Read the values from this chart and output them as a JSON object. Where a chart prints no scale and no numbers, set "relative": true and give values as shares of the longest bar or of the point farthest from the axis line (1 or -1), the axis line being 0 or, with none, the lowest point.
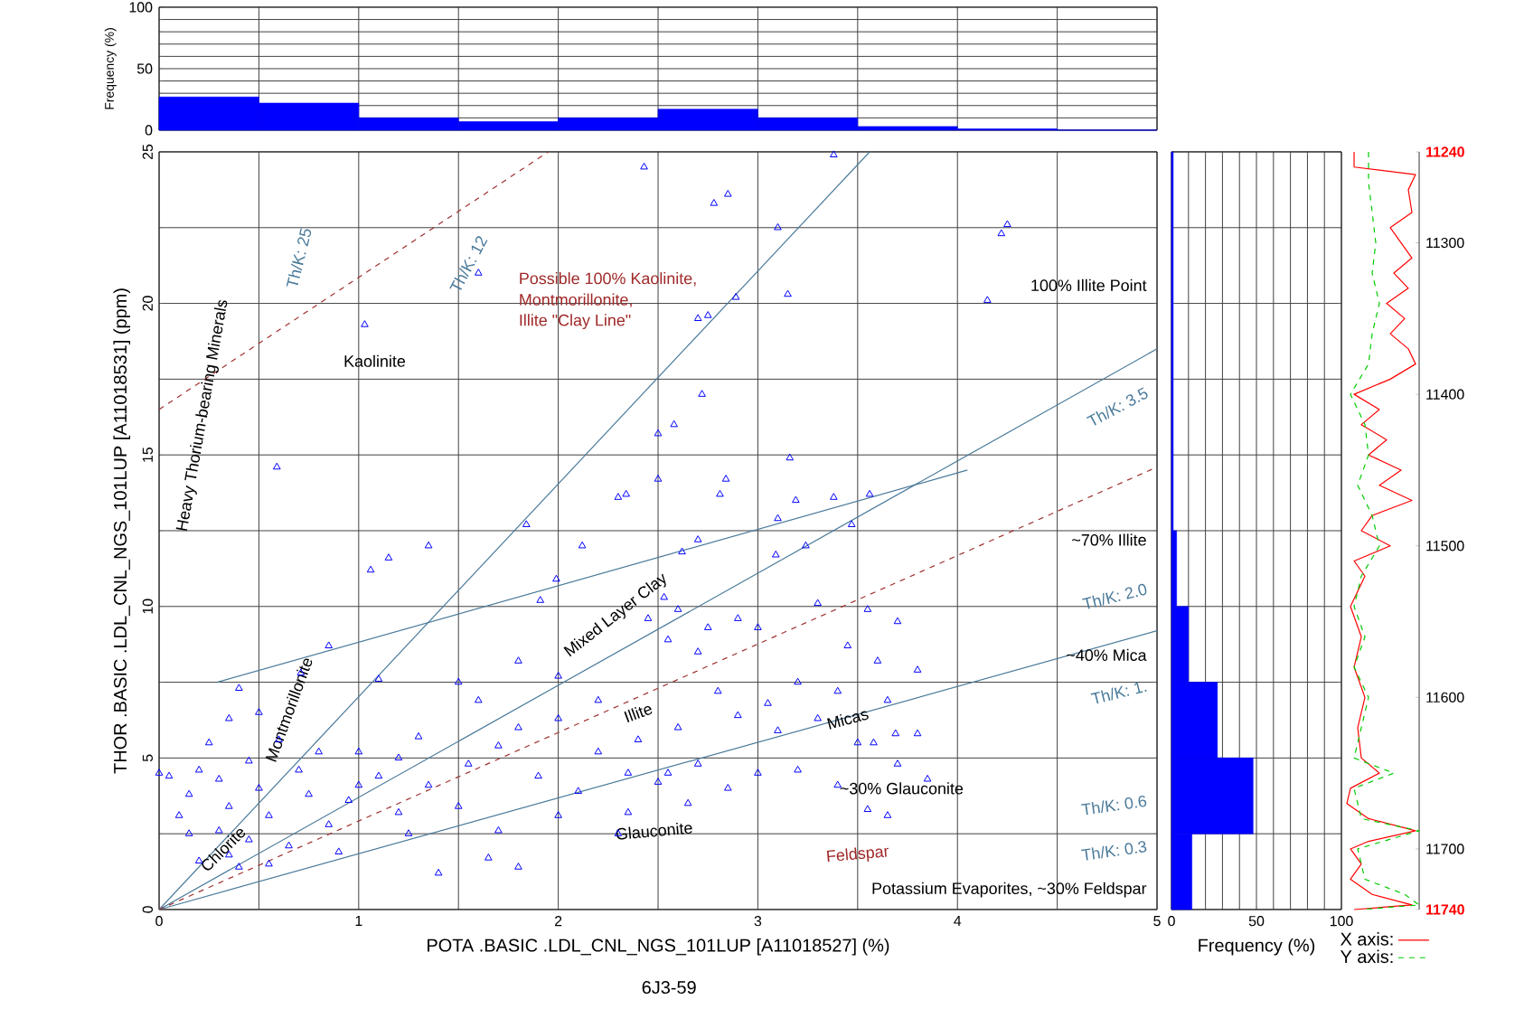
{
  "chart_data": [
    {
      "type": "scatter",
      "xlabel": "POTA .BASIC .LDL_CNL_NGS_101LUP [A11018527] (%)",
      "ylabel": "THOR .BASIC .LDL_CNL_NGS_101LUP [A11018531] (ppm)",
      "xlim": [
        0,
        5
      ],
      "xticks": [
        0,
        {
          "value": 0.5,
          "label": null
        },
        1,
        {
          "value": 1.5,
          "label": null
        },
        2,
        {
          "value": 2.5,
          "label": null
        },
        3,
        {
          "value": 3.5,
          "label": null
        },
        4,
        {
          "value": 4.5,
          "label": null
        },
        5
      ],
      "ylim": [
        0,
        25
      ],
      "yticks": [
        0,
        {
          "value": 2.5,
          "label": null
        },
        5,
        {
          "value": 7.5,
          "label": null
        },
        10,
        {
          "value": 12.5,
          "label": null
        },
        15,
        {
          "value": 17.5,
          "label": null
        },
        20,
        {
          "value": 22.5,
          "label": null
        },
        25
      ],
      "grid": true,
      "series": [
        {
          "color": "#0000ff",
          "marker": "triangle",
          "x": [
            2.43,
            2.78,
            2.85,
            3.38,
            3.1,
            4.22,
            4.25,
            1.6,
            1.03,
            2.89,
            2.7,
            2.75,
            3.15,
            4.15,
            2.72,
            2.5,
            2.58,
            0.59,
            2.5,
            2.84,
            2.34,
            3.16,
            2.81,
            2.3,
            1.84,
            1.35,
            1.15,
            1.06,
            2.12,
            1.99,
            1.91,
            2.53,
            2.62,
            2.7,
            3.19,
            3.38,
            3.56,
            3.1,
            3.47,
            3.24,
            3.09,
            0.85,
            0.71,
            1.1,
            1.5,
            2.45,
            2.6,
            2.75,
            2.9,
            2.55,
            2.7,
            3.0,
            3.3,
            3.55,
            3.7,
            3.45,
            3.6,
            3.8,
            3.2,
            3.4,
            3.65,
            3.05,
            2.8,
            2.9,
            3.1,
            3.3,
            3.5,
            3.7,
            3.85,
            2.6,
            2.4,
            2.2,
            2.0,
            1.8,
            1.7,
            1.55,
            1.9,
            2.1,
            2.35,
            2.5,
            2.7,
            2.85,
            3.0,
            3.2,
            1.3,
            1.2,
            1.0,
            1.1,
            1.35,
            0.95,
            1.2,
            1.5,
            1.7,
            1.65,
            1.8,
            2.0,
            1.25,
            0.85,
            0.75,
            0.7,
            0.6,
            0.5,
            0.45,
            0.5,
            0.55,
            0.45,
            0.35,
            0.3,
            0.35,
            0.3,
            0.2,
            0.25,
            0.15,
            0.15,
            0.2,
            0.1,
            0.05,
            0.0,
            0.4,
            0.55,
            0.65,
            0.9,
            1.0,
            0.8,
            2.3,
            2.35,
            1.4,
            2.55,
            2.65,
            3.4,
            3.55,
            3.65,
            3.8,
            2.0,
            1.8,
            1.6,
            2.2,
            0.35,
            0.4,
            3.58,
            3.69
          ],
          "values": [
            24.5,
            23.3,
            23.6,
            24.9,
            22.5,
            22.3,
            22.6,
            21.0,
            19.3,
            20.2,
            19.5,
            19.6,
            20.3,
            20.1,
            17.0,
            15.7,
            16.0,
            14.6,
            14.2,
            14.2,
            13.7,
            14.9,
            13.7,
            13.6,
            12.7,
            12.0,
            11.6,
            11.2,
            12.0,
            10.9,
            10.2,
            10.3,
            11.8,
            12.2,
            13.5,
            13.6,
            13.7,
            12.9,
            12.7,
            12.0,
            11.7,
            8.7,
            7.8,
            7.6,
            7.5,
            9.6,
            9.9,
            9.3,
            9.6,
            8.9,
            8.5,
            9.3,
            10.1,
            9.9,
            9.5,
            8.7,
            8.2,
            7.9,
            7.5,
            7.2,
            6.9,
            6.8,
            7.2,
            6.4,
            5.9,
            6.3,
            5.5,
            4.8,
            4.3,
            6.0,
            5.6,
            5.2,
            6.3,
            6.0,
            5.4,
            4.8,
            4.4,
            3.9,
            4.5,
            4.2,
            4.8,
            4.0,
            4.5,
            4.6,
            5.7,
            5.0,
            5.2,
            4.4,
            4.1,
            3.6,
            3.2,
            3.4,
            2.6,
            1.7,
            1.4,
            3.1,
            2.5,
            2.8,
            3.8,
            4.6,
            5.6,
            6.5,
            4.9,
            4.0,
            3.1,
            2.3,
            1.8,
            2.6,
            3.4,
            4.3,
            4.6,
            5.5,
            3.8,
            2.5,
            1.6,
            3.1,
            4.4,
            4.5,
            1.4,
            1.5,
            2.1,
            1.9,
            4.1,
            5.2,
            2.5,
            3.2,
            1.2,
            4.5,
            3.5,
            4.1,
            3.3,
            3.1,
            5.8,
            7.7,
            8.2,
            6.9,
            6.9,
            6.3,
            7.3,
            5.5,
            5.8
          ]
        },
        {
          "type": "line",
          "color": "#4a7a9a",
          "x": [
            0,
            3.56
          ],
          "values": [
            0,
            25
          ]
        },
        {
          "type": "line",
          "color": "#4a7a9a",
          "x": [
            0,
            5
          ],
          "values": [
            0,
            18.5
          ]
        },
        {
          "type": "line",
          "color": "#4a7a9a",
          "x": [
            0.29,
            4.05
          ],
          "values": [
            7.5,
            14.5
          ]
        },
        {
          "type": "line",
          "color": "#4a7a9a",
          "x": [
            0,
            5
          ],
          "values": [
            0,
            9.2
          ]
        },
        {
          "type": "line",
          "color": "#a03030",
          "line_style": "dashed",
          "x": [
            0,
            5
          ],
          "values": [
            0,
            14.6
          ]
        },
        {
          "type": "line",
          "color": "#a03030",
          "line_style": "dashed",
          "x": [
            0,
            1.95
          ],
          "values": [
            16.5,
            25
          ]
        }
      ],
      "annotations": [
        "Th/K: 25",
        "Th/K: 12",
        "Possible 100% Kaolinite,",
        "Montmorillonite,",
        "Illite \"Clay Line\"",
        "Kaolinite",
        "Heavy Thorium-bearing Minerals",
        "100% Illite Point",
        "Th/K: 3.5",
        "~70% Illite",
        "Mixed Layer Clay",
        "Th/K: 2.0",
        "~40% Mica",
        "Th/K: 1.",
        "Montmorillonite",
        "Chlorite",
        "Illite",
        "Micas",
        "~30% Glauconite",
        "Th/K: 0.6",
        "Glauconite",
        "Th/K: 0.3",
        "Feldspar",
        "Potassium Evaporites, ~30% Feldspar",
        "6J3-59"
      ]
    },
    {
      "type": "histogram",
      "ylabel": "Frequency (%)",
      "bins": [
        0,
        0.5,
        1,
        1.5,
        2,
        2.5,
        3,
        3.5,
        4,
        4.5,
        5
      ],
      "values": [
        27,
        22,
        10,
        7,
        10,
        17,
        10,
        3,
        1,
        0
      ],
      "color": "#0000ff",
      "xlim": [
        0,
        5
      ],
      "xticks": [
        {
          "value": 0,
          "label": null
        },
        {
          "value": 0.5,
          "label": null
        },
        {
          "value": 1,
          "label": null
        },
        {
          "value": 1.5,
          "label": null
        },
        {
          "value": 2,
          "label": null
        },
        {
          "value": 2.5,
          "label": null
        },
        {
          "value": 3,
          "label": null
        },
        {
          "value": 3.5,
          "label": null
        },
        {
          "value": 4,
          "label": null
        },
        {
          "value": 4.5,
          "label": null
        },
        {
          "value": 5,
          "label": null
        }
      ],
      "ylim": [
        0,
        100
      ],
      "yticks": [
        0,
        {
          "value": 10,
          "label": null
        },
        {
          "value": 20,
          "label": null
        },
        {
          "value": 30,
          "label": null
        },
        {
          "value": 40,
          "label": null
        },
        50,
        {
          "value": 60,
          "label": null
        },
        {
          "value": 70,
          "label": null
        },
        {
          "value": 80,
          "label": null
        },
        {
          "value": 90,
          "label": null
        },
        100
      ],
      "grid": true,
      "tick_labels": "y"
    },
    {
      "type": "histogram",
      "orientation": "horizontal",
      "xlabel": "Frequency (%)",
      "bins": [
        0,
        2.5,
        5,
        7.5,
        10,
        12.5,
        15,
        17.5,
        20,
        22.5,
        25
      ],
      "values": [
        12,
        48,
        27,
        10,
        3,
        1,
        1,
        1,
        1,
        1
      ],
      "color": "#0000ff",
      "xlim": [
        0,
        100
      ],
      "xticks": [
        0,
        {
          "value": 10,
          "label": null
        },
        {
          "value": 20,
          "label": null
        },
        {
          "value": 30,
          "label": null
        },
        {
          "value": 40,
          "label": null
        },
        50,
        {
          "value": 60,
          "label": null
        },
        {
          "value": 70,
          "label": null
        },
        {
          "value": 80,
          "label": null
        },
        {
          "value": 90,
          "label": null
        },
        100
      ],
      "ylim": [
        0,
        25
      ],
      "yticks": [
        {
          "value": 0,
          "label": null
        },
        {
          "value": 2.5,
          "label": null
        },
        {
          "value": 5,
          "label": null
        },
        {
          "value": 7.5,
          "label": null
        },
        {
          "value": 10,
          "label": null
        },
        {
          "value": 12.5,
          "label": null
        },
        {
          "value": 15,
          "label": null
        },
        {
          "value": 17.5,
          "label": null
        },
        {
          "value": 20,
          "label": null
        },
        {
          "value": 22.5,
          "label": null
        },
        {
          "value": 25,
          "label": null
        }
      ],
      "grid": true,
      "tick_labels": "x"
    },
    {
      "type": "line",
      "orientation": "horizontal",
      "relative": true,
      "legend": "bottom",
      "ylim": [
        11740,
        11240
      ],
      "yticks": [
        11240,
        11300,
        11400,
        11500,
        11600,
        11700,
        11740
      ],
      "series": [
        {
          "name": "X axis:",
          "color": "#ff0000",
          "x": [
            11240,
            11250,
            11255,
            11265,
            11280,
            11290,
            11300,
            11310,
            11320,
            11330,
            11340,
            11350,
            11360,
            11370,
            11380,
            11390,
            11400,
            11410,
            11420,
            11430,
            11440,
            11450,
            11460,
            11470,
            11480,
            11490,
            11500,
            11510,
            11520,
            11540,
            11560,
            11580,
            11600,
            11620,
            11640,
            11650,
            11660,
            11670,
            11680,
            11688,
            11695,
            11700,
            11710,
            11720,
            11730,
            11737,
            11740
          ],
          "values": [
            0.1,
            0.1,
            0.95,
            0.85,
            0.9,
            0.6,
            0.75,
            0.9,
            0.65,
            0.85,
            0.55,
            0.8,
            0.6,
            0.85,
            0.95,
            0.6,
            0.1,
            0.45,
            0.2,
            0.55,
            0.3,
            0.75,
            0.45,
            0.9,
            0.35,
            0.2,
            0.6,
            0.1,
            0.25,
            0.05,
            0.2,
            0.1,
            0.25,
            0.15,
            0.2,
            0.45,
            0.05,
            0.0,
            0.3,
            0.95,
            0.3,
            0.05,
            0.2,
            0.05,
            0.35,
            0.9,
            0.1
          ]
        },
        {
          "name": "Y axis:",
          "color": "#00cc00",
          "line_style": "dashed",
          "x": [
            11240,
            11260,
            11280,
            11300,
            11320,
            11340,
            11360,
            11380,
            11400,
            11420,
            11440,
            11460,
            11480,
            11500,
            11520,
            11540,
            11560,
            11580,
            11600,
            11620,
            11640,
            11650,
            11660,
            11680,
            11688,
            11695,
            11700,
            11720,
            11730,
            11737,
            11740
          ],
          "values": [
            0.3,
            0.3,
            0.35,
            0.4,
            0.35,
            0.45,
            0.35,
            0.3,
            0.05,
            0.25,
            0.3,
            0.15,
            0.35,
            0.45,
            0.2,
            0.1,
            0.25,
            0.1,
            0.3,
            0.2,
            0.1,
            0.65,
            0.1,
            0.2,
            1.0,
            0.5,
            0.15,
            0.25,
            0.8,
            1.0,
            0.2
          ]
        }
      ]
    }
  ]
}
